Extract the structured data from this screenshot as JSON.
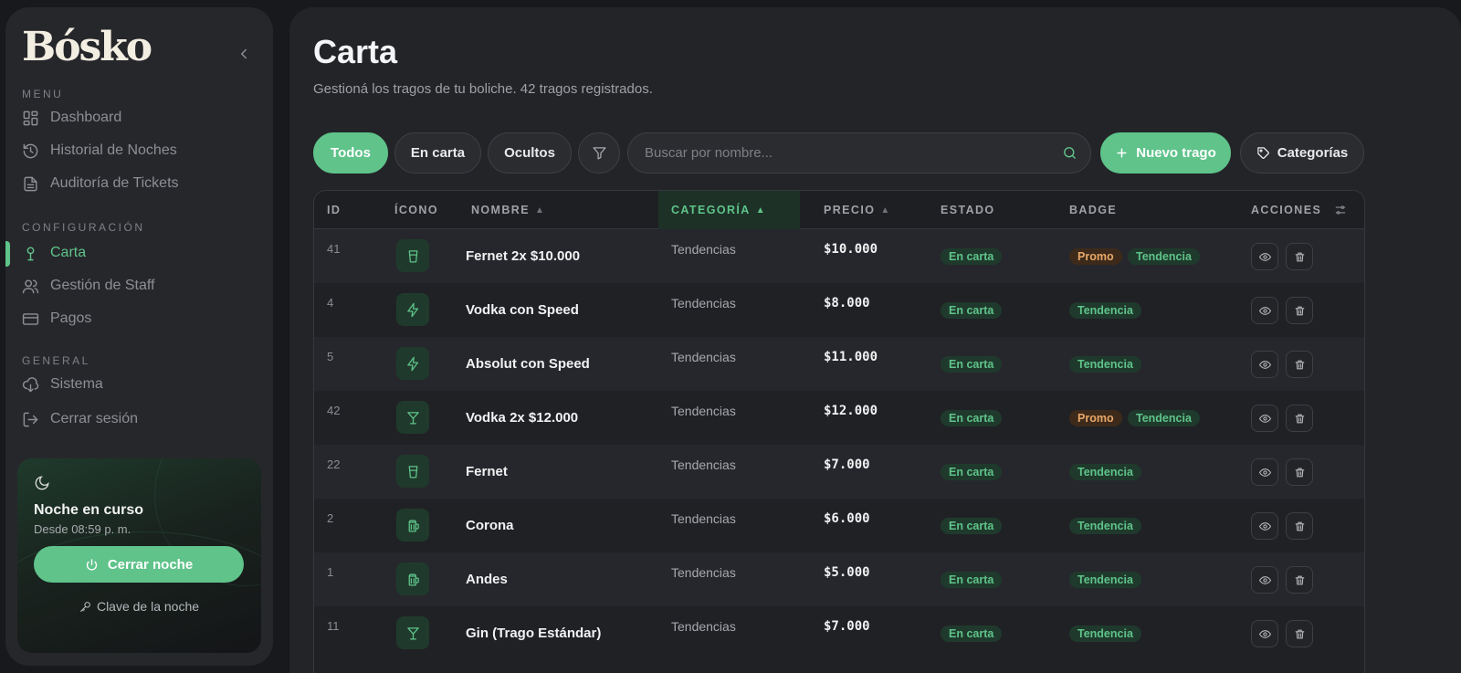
{
  "brand": {
    "logo_text": "Bósko"
  },
  "sidebar": {
    "sections": [
      {
        "label": "MENU",
        "items": [
          {
            "label": "Dashboard",
            "icon": "dashboard-icon"
          },
          {
            "label": "Historial de Noches",
            "icon": "history-icon"
          },
          {
            "label": "Auditoría de Tickets",
            "icon": "document-icon"
          }
        ]
      },
      {
        "label": "CONFIGURACIÓN",
        "items": [
          {
            "label": "Carta",
            "icon": "microphone-icon",
            "active": true
          },
          {
            "label": "Gestión de Staff",
            "icon": "users-icon"
          },
          {
            "label": "Pagos",
            "icon": "credit-card-icon"
          }
        ]
      },
      {
        "label": "GENERAL",
        "items": [
          {
            "label": "Sistema",
            "icon": "cloud-download-icon"
          },
          {
            "label": "Cerrar sesión",
            "icon": "logout-icon"
          }
        ]
      }
    ],
    "night_card": {
      "title": "Noche en curso",
      "since": "Desde 08:59 p. m.",
      "close_button": "Cerrar noche",
      "key_link": "Clave de la noche"
    }
  },
  "page": {
    "title": "Carta",
    "subtitle": "Gestioná los tragos de tu boliche. 42 tragos registrados."
  },
  "toolbar": {
    "filters": [
      "Todos",
      "En carta",
      "Ocultos"
    ],
    "active_filter": "Todos",
    "search_placeholder": "Buscar por nombre...",
    "new_button": "Nuevo trago",
    "categories_button": "Categorías"
  },
  "table": {
    "columns": [
      "ID",
      "ÍCONO",
      "NOMBRE",
      "CATEGORÍA",
      "PRECIO",
      "ESTADO",
      "BADGE",
      "ACCIONES"
    ],
    "sorted_column": "CATEGORÍA",
    "rows": [
      {
        "id": "41",
        "icon": "cup-icon",
        "name": "Fernet 2x $10.000",
        "category": "Tendencias",
        "price": "$10.000",
        "status": "En carta",
        "badges": [
          "Promo",
          "Tendencia"
        ]
      },
      {
        "id": "4",
        "icon": "lightning-icon",
        "name": "Vodka con Speed",
        "category": "Tendencias",
        "price": "$8.000",
        "status": "En carta",
        "badges": [
          "Tendencia"
        ]
      },
      {
        "id": "5",
        "icon": "lightning-icon",
        "name": "Absolut con Speed",
        "category": "Tendencias",
        "price": "$11.000",
        "status": "En carta",
        "badges": [
          "Tendencia"
        ]
      },
      {
        "id": "42",
        "icon": "cocktail-icon",
        "name": "Vodka 2x $12.000",
        "category": "Tendencias",
        "price": "$12.000",
        "status": "En carta",
        "badges": [
          "Promo",
          "Tendencia"
        ]
      },
      {
        "id": "22",
        "icon": "cup-icon",
        "name": "Fernet",
        "category": "Tendencias",
        "price": "$7.000",
        "status": "En carta",
        "badges": [
          "Tendencia"
        ]
      },
      {
        "id": "2",
        "icon": "beer-icon",
        "name": "Corona",
        "category": "Tendencias",
        "price": "$6.000",
        "status": "En carta",
        "badges": [
          "Tendencia"
        ]
      },
      {
        "id": "1",
        "icon": "beer-icon",
        "name": "Andes",
        "category": "Tendencias",
        "price": "$5.000",
        "status": "En carta",
        "badges": [
          "Tendencia"
        ]
      },
      {
        "id": "11",
        "icon": "cocktail-icon",
        "name": "Gin (Trago Estándar)",
        "category": "Tendencias",
        "price": "$7.000",
        "status": "En carta",
        "badges": [
          "Tendencia"
        ]
      }
    ]
  },
  "colors": {
    "accent": "#5fc38a",
    "promo": "#e8a868",
    "background": "#18191c",
    "panel": "#26272b"
  }
}
